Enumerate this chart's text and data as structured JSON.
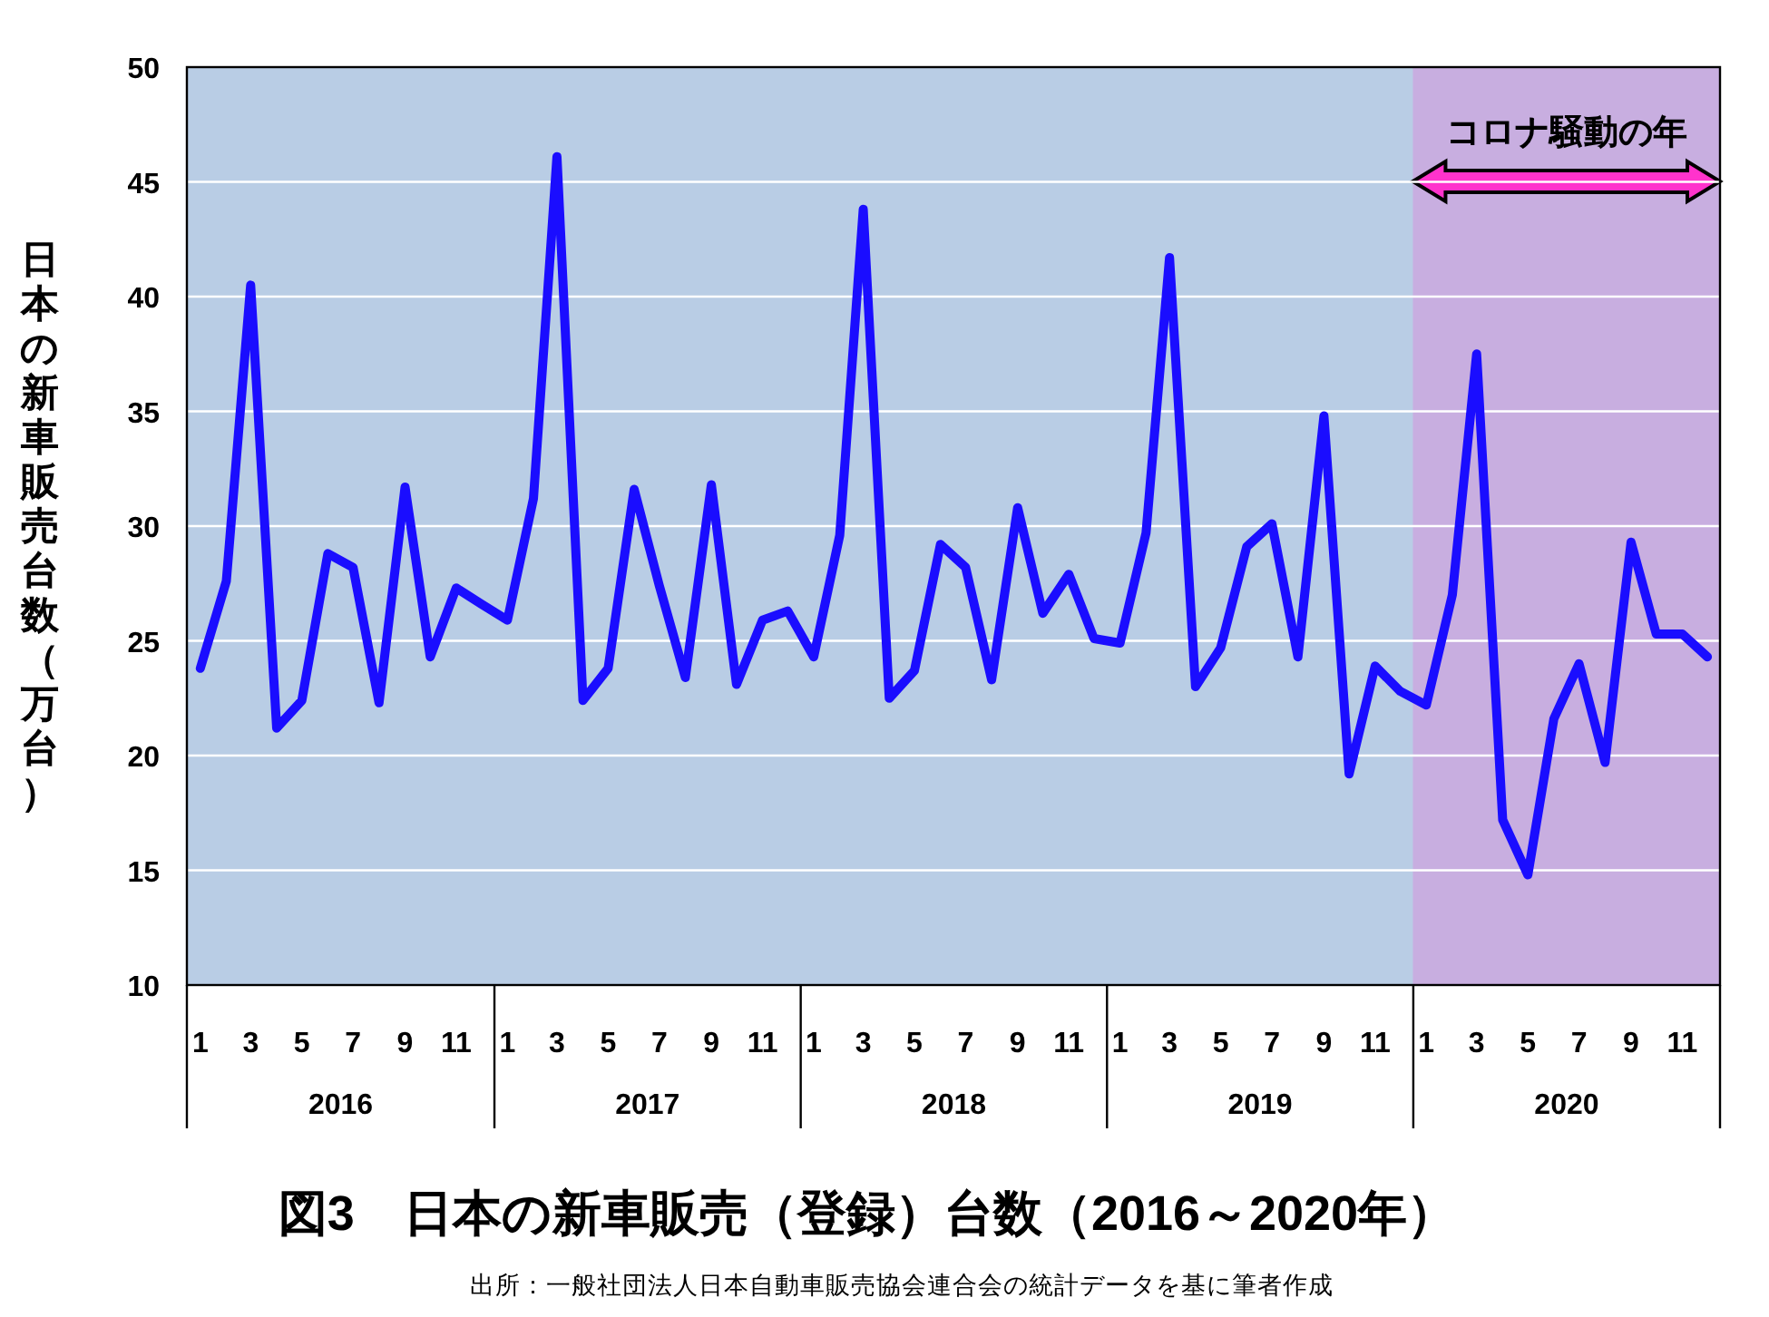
{
  "chart_data": {
    "type": "line",
    "title": "図3　日本の新車販売（登録）台数（2016～2020年）",
    "ylabel": "日本の新車販売台数（万台）",
    "x": [
      "2016-01",
      "2016-02",
      "2016-03",
      "2016-04",
      "2016-05",
      "2016-06",
      "2016-07",
      "2016-08",
      "2016-09",
      "2016-10",
      "2016-11",
      "2016-12",
      "2017-01",
      "2017-02",
      "2017-03",
      "2017-04",
      "2017-05",
      "2017-06",
      "2017-07",
      "2017-08",
      "2017-09",
      "2017-10",
      "2017-11",
      "2017-12",
      "2018-01",
      "2018-02",
      "2018-03",
      "2018-04",
      "2018-05",
      "2018-06",
      "2018-07",
      "2018-08",
      "2018-09",
      "2018-10",
      "2018-11",
      "2018-12",
      "2019-01",
      "2019-02",
      "2019-03",
      "2019-04",
      "2019-05",
      "2019-06",
      "2019-07",
      "2019-08",
      "2019-09",
      "2019-10",
      "2019-11",
      "2019-12",
      "2020-01",
      "2020-02",
      "2020-03",
      "2020-04",
      "2020-05",
      "2020-06",
      "2020-07",
      "2020-08",
      "2020-09",
      "2020-10",
      "2020-11",
      "2020-12"
    ],
    "series": [
      {
        "color": "#1a0dff",
        "values": [
          23.8,
          27.6,
          40.5,
          21.2,
          22.4,
          28.8,
          28.2,
          22.3,
          31.7,
          24.3,
          27.3,
          26.6,
          25.9,
          31.2,
          46.1,
          22.4,
          23.8,
          31.6,
          27.4,
          23.4,
          31.8,
          23.1,
          25.9,
          26.3,
          24.3,
          29.6,
          43.8,
          22.5,
          23.7,
          29.2,
          28.2,
          23.3,
          30.8,
          26.2,
          27.9,
          25.1,
          24.9,
          29.7,
          41.7,
          23.0,
          24.7,
          29.1,
          30.1,
          24.3,
          34.8,
          19.2,
          23.9,
          22.8,
          22.2,
          27.0,
          37.5,
          17.2,
          14.8,
          21.6,
          24.0,
          19.7,
          29.3,
          25.3,
          25.3,
          24.3
        ]
      }
    ],
    "xlim": [
      "2015-12-16",
      "2020-12-16"
    ],
    "xticks": [
      {
        "value": "2016-01",
        "label": "1"
      },
      {
        "value": "2016-03",
        "label": "3"
      },
      {
        "value": "2016-05",
        "label": "5"
      },
      {
        "value": "2016-07",
        "label": "7"
      },
      {
        "value": "2016-09",
        "label": "9"
      },
      {
        "value": "2016-11",
        "label": "11"
      },
      {
        "value": "2017-01",
        "label": "1"
      },
      {
        "value": "2017-03",
        "label": "3"
      },
      {
        "value": "2017-05",
        "label": "5"
      },
      {
        "value": "2017-07",
        "label": "7"
      },
      {
        "value": "2017-09",
        "label": "9"
      },
      {
        "value": "2017-11",
        "label": "11"
      },
      {
        "value": "2018-01",
        "label": "1"
      },
      {
        "value": "2018-03",
        "label": "3"
      },
      {
        "value": "2018-05",
        "label": "5"
      },
      {
        "value": "2018-07",
        "label": "7"
      },
      {
        "value": "2018-09",
        "label": "9"
      },
      {
        "value": "2018-11",
        "label": "11"
      },
      {
        "value": "2019-01",
        "label": "1"
      },
      {
        "value": "2019-03",
        "label": "3"
      },
      {
        "value": "2019-05",
        "label": "5"
      },
      {
        "value": "2019-07",
        "label": "7"
      },
      {
        "value": "2019-09",
        "label": "9"
      },
      {
        "value": "2019-11",
        "label": "11"
      },
      {
        "value": "2020-01",
        "label": "1"
      },
      {
        "value": "2020-03",
        "label": "3"
      },
      {
        "value": "2020-05",
        "label": "5"
      },
      {
        "value": "2020-07",
        "label": "7"
      },
      {
        "value": "2020-09",
        "label": "9"
      },
      {
        "value": "2020-11",
        "label": "11"
      }
    ],
    "ylim": [
      10,
      50
    ],
    "yticks": [
      10,
      15,
      20,
      25,
      30,
      35,
      40,
      45,
      50
    ],
    "grid": "y",
    "marker": "none",
    "line_style": "solid",
    "bands": [
      {
        "axis": "x",
        "from": "2019-12-16",
        "to": "2020-12-16",
        "label": "コロナ騒動の年",
        "color": "#c8aee0"
      }
    ],
    "annotations": [
      "2016",
      "2017",
      "2018",
      "2019",
      "2020",
      "出所：一般社団法人日本自動車販売協会連合会の統計データを基に筆者作成"
    ]
  }
}
